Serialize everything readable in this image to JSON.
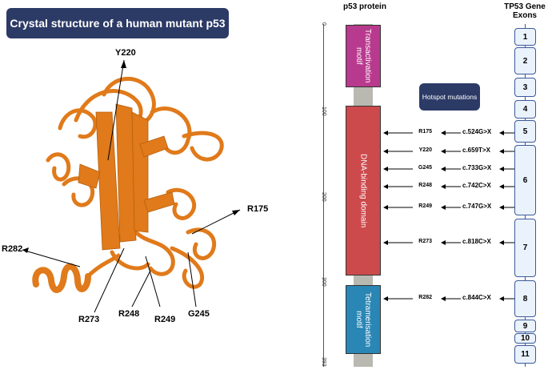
{
  "title": "Crystal structure of a human mutant p53",
  "protein_header": "p53 protein",
  "gene_header": "TP53 Gene Exons",
  "hotspot_label": "Hotspot mutations",
  "structure_labels": {
    "y220": "Y220",
    "r175": "R175",
    "r282": "R282",
    "r273": "R273",
    "r248": "R248",
    "r249": "R249",
    "g245": "G245"
  },
  "ruler_ticks": [
    "0",
    "100",
    "200",
    "300",
    "393"
  ],
  "domains": {
    "transactivation": "Transactivation motif",
    "dna_binding": "DNA-binding domain",
    "tetramerisation": "Tetramerisation motif"
  },
  "colors": {
    "title_bg": "#2c3a66",
    "transactivation": "#b83a8e",
    "dna_binding": "#cc4a4c",
    "tetramerisation": "#2a86b4",
    "linker": "#b9b9b1",
    "protein_ribbon": "#e07a1a",
    "exon_fill": "#eaf2fb",
    "exon_border": "#3a5a9a"
  },
  "exons": [
    "1",
    "2",
    "3",
    "4",
    "5",
    "6",
    "7",
    "8",
    "9",
    "10",
    "11"
  ],
  "mutations": [
    {
      "aa": "R175",
      "cdna": "c.524G>X"
    },
    {
      "aa": "Y220",
      "cdna": "c.659T>X"
    },
    {
      "aa": "G245",
      "cdna": "c.733G>X"
    },
    {
      "aa": "R248",
      "cdna": "c.742C>X"
    },
    {
      "aa": "R249",
      "cdna": "c.747G>X"
    },
    {
      "aa": "R273",
      "cdna": "c.818C>X"
    },
    {
      "aa": "R282",
      "cdna": "c.844C>X"
    }
  ]
}
